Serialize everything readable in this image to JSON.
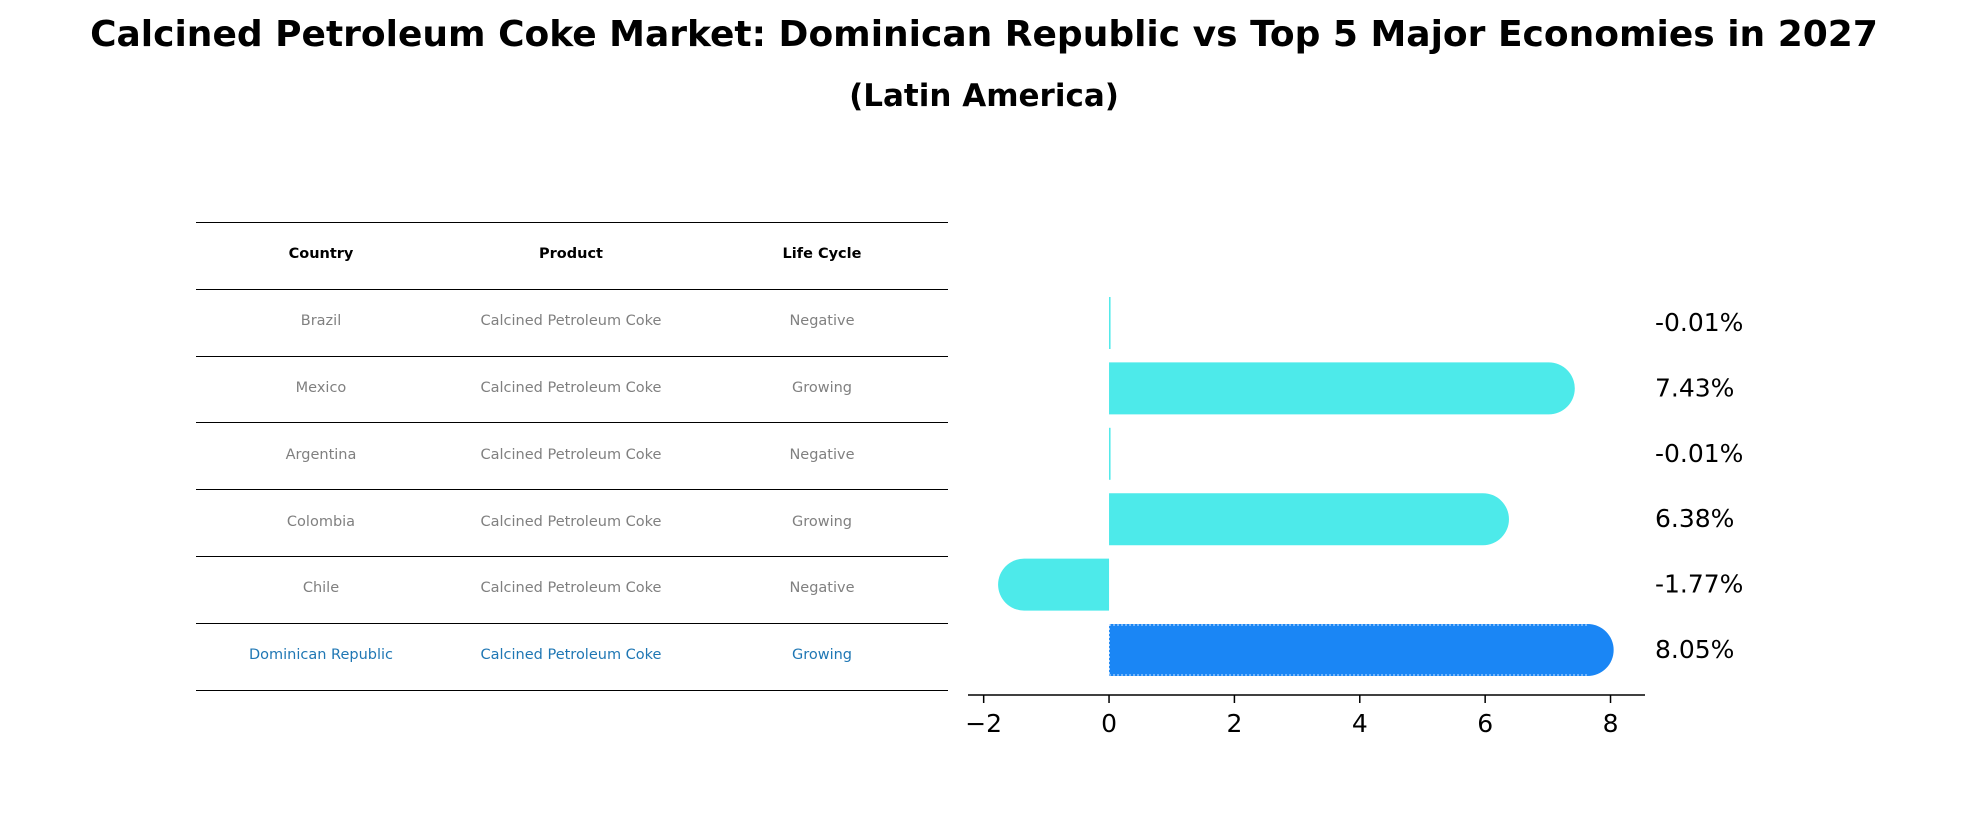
{
  "title": "Calcined Petroleum Coke Market: Dominican Republic vs Top 5 Major Economies in 2027",
  "subtitle": "(Latin America)",
  "table": {
    "headers": [
      "Country",
      "Product",
      "Life Cycle"
    ],
    "rows": [
      [
        "Brazil",
        "Calcined Petroleum Coke",
        "Negative"
      ],
      [
        "Mexico",
        "Calcined Petroleum Coke",
        "Growing"
      ],
      [
        "Argentina",
        "Calcined Petroleum Coke",
        "Negative"
      ],
      [
        "Colombia",
        "Calcined Petroleum Coke",
        "Growing"
      ],
      [
        "Chile",
        "Calcined Petroleum Coke",
        "Negative"
      ],
      [
        "Dominican Republic",
        "Calcined Petroleum Coke",
        "Growing"
      ]
    ],
    "highlight_row": 5,
    "highlight_color": "#1f77b4"
  },
  "chart_data": {
    "type": "bar",
    "orientation": "horizontal",
    "categories": [
      "Brazil",
      "Mexico",
      "Argentina",
      "Colombia",
      "Chile",
      "Dominican Republic"
    ],
    "values": [
      -0.01,
      7.43,
      -0.01,
      6.38,
      -1.77,
      8.05
    ],
    "value_labels": [
      "-0.01%",
      "7.43%",
      "-0.01%",
      "6.38%",
      "-1.77%",
      "8.05%"
    ],
    "xlim": [
      -2.25,
      8.55
    ],
    "xticks": [
      -2,
      0,
      2,
      4,
      6,
      8
    ],
    "xtick_labels": [
      "−2",
      "0",
      "2",
      "4",
      "6",
      "8"
    ],
    "bar_color": "#4deaea",
    "highlight_color": "#1a86f5",
    "highlight_index": 5,
    "grid": false
  }
}
